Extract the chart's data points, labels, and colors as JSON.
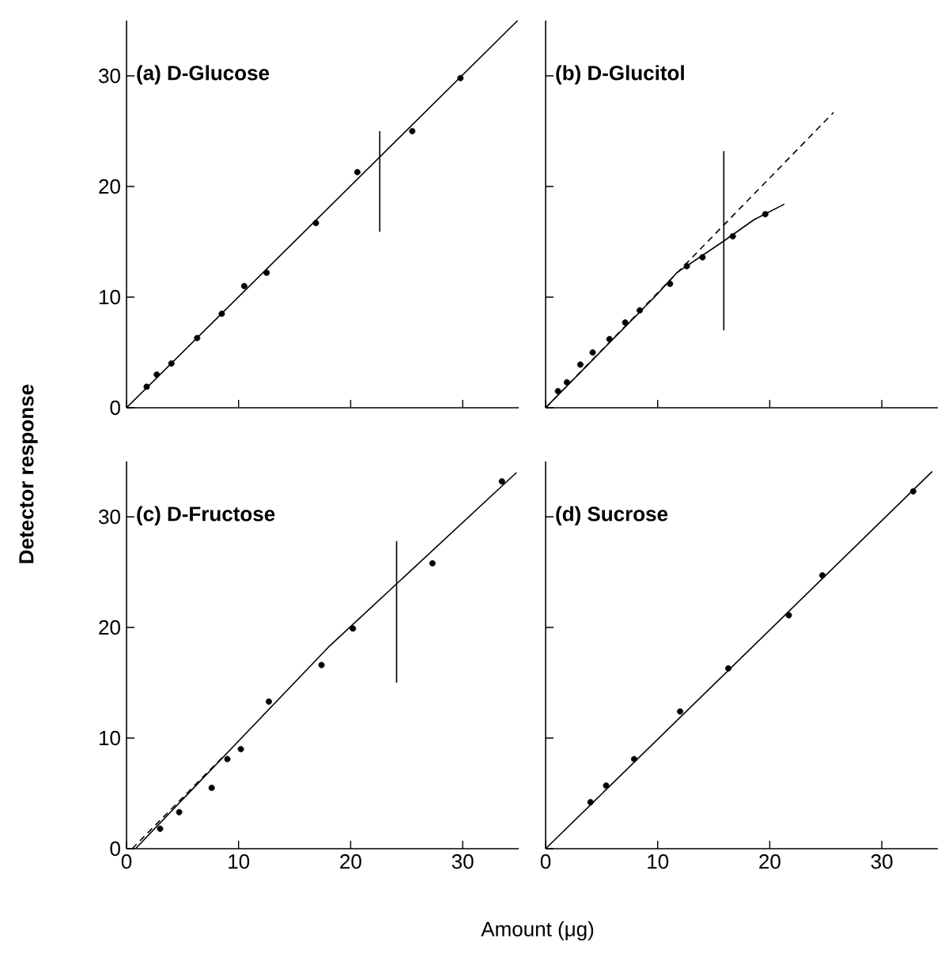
{
  "chart_data": [
    {
      "type": "scatter",
      "title": "(a) D-Glucose",
      "ylabel": "Detector response",
      "xlim": [
        0,
        35
      ],
      "ylim": [
        0,
        35
      ],
      "xticks": [
        0,
        10,
        20,
        30
      ],
      "yticks": [
        0,
        10,
        20,
        30
      ],
      "tick_labels": "y",
      "series": [
        {
          "color": "#000000",
          "marker": "circle",
          "x": [
            1.8,
            2.7,
            4.0,
            6.3,
            8.5,
            10.5,
            12.5,
            16.9,
            20.6,
            25.5,
            29.8
          ],
          "values": [
            1.9,
            3.0,
            4.0,
            6.3,
            8.5,
            11.0,
            12.2,
            16.7,
            21.3,
            25.0,
            29.8
          ]
        },
        {
          "type": "line",
          "color": "#000000",
          "line_style": "solid",
          "x": [
            0,
            34.9
          ],
          "values": [
            0,
            35
          ]
        },
        {
          "type": "line",
          "color": "#000000",
          "line_style": "solid",
          "x": [
            22.6,
            22.6
          ],
          "values": [
            15.9,
            25.0
          ]
        }
      ]
    },
    {
      "type": "scatter",
      "title": "(b) D-Glucitol",
      "xlim": [
        0,
        35
      ],
      "ylim": [
        0,
        35
      ],
      "xticks": [
        0,
        10,
        20,
        30
      ],
      "yticks": [
        0,
        10,
        20,
        30
      ],
      "tick_labels": false,
      "series": [
        {
          "color": "#000000",
          "marker": "circle",
          "x": [
            1.1,
            1.9,
            3.1,
            4.2,
            5.7,
            7.1,
            8.4,
            11.1,
            12.6,
            14.0,
            16.7,
            19.6
          ],
          "values": [
            1.5,
            2.3,
            3.9,
            5.0,
            6.2,
            7.7,
            8.8,
            11.2,
            12.8,
            13.6,
            15.5,
            17.5
          ]
        },
        {
          "type": "line",
          "color": "#000000",
          "line_style": "solid",
          "x": [
            0,
            9.9,
            11.7,
            15.8,
            18.6,
            21.3
          ],
          "values": [
            0,
            10.2,
            12.2,
            15.0,
            17.0,
            18.4
          ]
        },
        {
          "type": "line",
          "color": "#000000",
          "line_style": "dashed",
          "x": [
            0,
            25.7
          ],
          "values": [
            0,
            26.7
          ]
        },
        {
          "type": "line",
          "color": "#000000",
          "line_style": "solid",
          "x": [
            15.9,
            15.9
          ],
          "values": [
            7.0,
            23.2
          ]
        }
      ]
    },
    {
      "type": "scatter",
      "title": "(c) D-Fructose",
      "xlim": [
        0,
        35
      ],
      "ylim": [
        0,
        35
      ],
      "xticks": [
        0,
        10,
        20,
        30
      ],
      "yticks": [
        0,
        10,
        20,
        30
      ],
      "series": [
        {
          "color": "#000000",
          "marker": "circle",
          "x": [
            3.0,
            4.7,
            7.6,
            9.0,
            10.2,
            12.7,
            17.4,
            20.2,
            27.3,
            33.5
          ],
          "values": [
            1.8,
            3.3,
            5.5,
            8.1,
            9.0,
            13.3,
            16.6,
            19.9,
            25.8,
            33.2
          ]
        },
        {
          "type": "line",
          "color": "#000000",
          "line_style": "solid",
          "x": [
            0.8,
            18.0,
            34.8
          ],
          "values": [
            0,
            18.2,
            34.0
          ]
        },
        {
          "type": "line",
          "color": "#000000",
          "line_style": "dashed",
          "x": [
            0.5,
            8.6
          ],
          "values": [
            0,
            8.3
          ]
        },
        {
          "type": "line",
          "color": "#000000",
          "line_style": "solid",
          "x": [
            24.1,
            24.1
          ],
          "values": [
            15.0,
            27.8
          ]
        }
      ]
    },
    {
      "type": "scatter",
      "title": "(d) Sucrose",
      "xlabel": "Amount (μg)",
      "xlim": [
        0,
        35
      ],
      "ylim": [
        0,
        35
      ],
      "xticks": [
        0,
        10,
        20,
        30
      ],
      "yticks": [
        0,
        10,
        20,
        30
      ],
      "tick_labels": "x",
      "series": [
        {
          "color": "#000000",
          "marker": "circle",
          "x": [
            4.0,
            5.4,
            7.9,
            12.0,
            16.3,
            21.7,
            24.7,
            32.8
          ],
          "values": [
            4.2,
            5.7,
            8.1,
            12.4,
            16.3,
            21.1,
            24.7,
            32.3
          ]
        },
        {
          "type": "line",
          "color": "#000000",
          "line_style": "solid",
          "x": [
            0,
            34.5
          ],
          "values": [
            0,
            34.1
          ]
        }
      ]
    }
  ]
}
